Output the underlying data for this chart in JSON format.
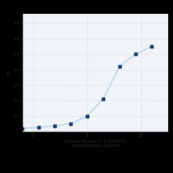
{
  "x_values": [
    0.0313,
    0.0625,
    0.125,
    0.25,
    0.5,
    1,
    2,
    4,
    8
  ],
  "y_values": [
    0.1,
    0.13,
    0.18,
    0.25,
    0.5,
    1.05,
    2.1,
    2.5,
    2.75
  ],
  "line_color": "#a8c8e8",
  "marker_color": "#1a3a6b",
  "marker_style": "s",
  "marker_size": 3.5,
  "xlabel_line1": "Human Myozenin 2 (MYOZ2)",
  "xlabel_line2": "Concentration (ng/ml)",
  "ylabel": "OD",
  "xlim_log": [
    -1.6,
    1.3
  ],
  "ylim": [
    0,
    3.8
  ],
  "yticks": [
    0.5,
    1.0,
    1.5,
    2.0,
    2.5,
    3.0,
    3.5
  ],
  "grid_color": "#d0d8e0",
  "grid_style": "--",
  "fig_bg_color": "#000000",
  "plot_bg_color": "#f0f4f8",
  "label_fontsize": 4.5,
  "tick_fontsize": 4.5,
  "line_width": 0.9
}
